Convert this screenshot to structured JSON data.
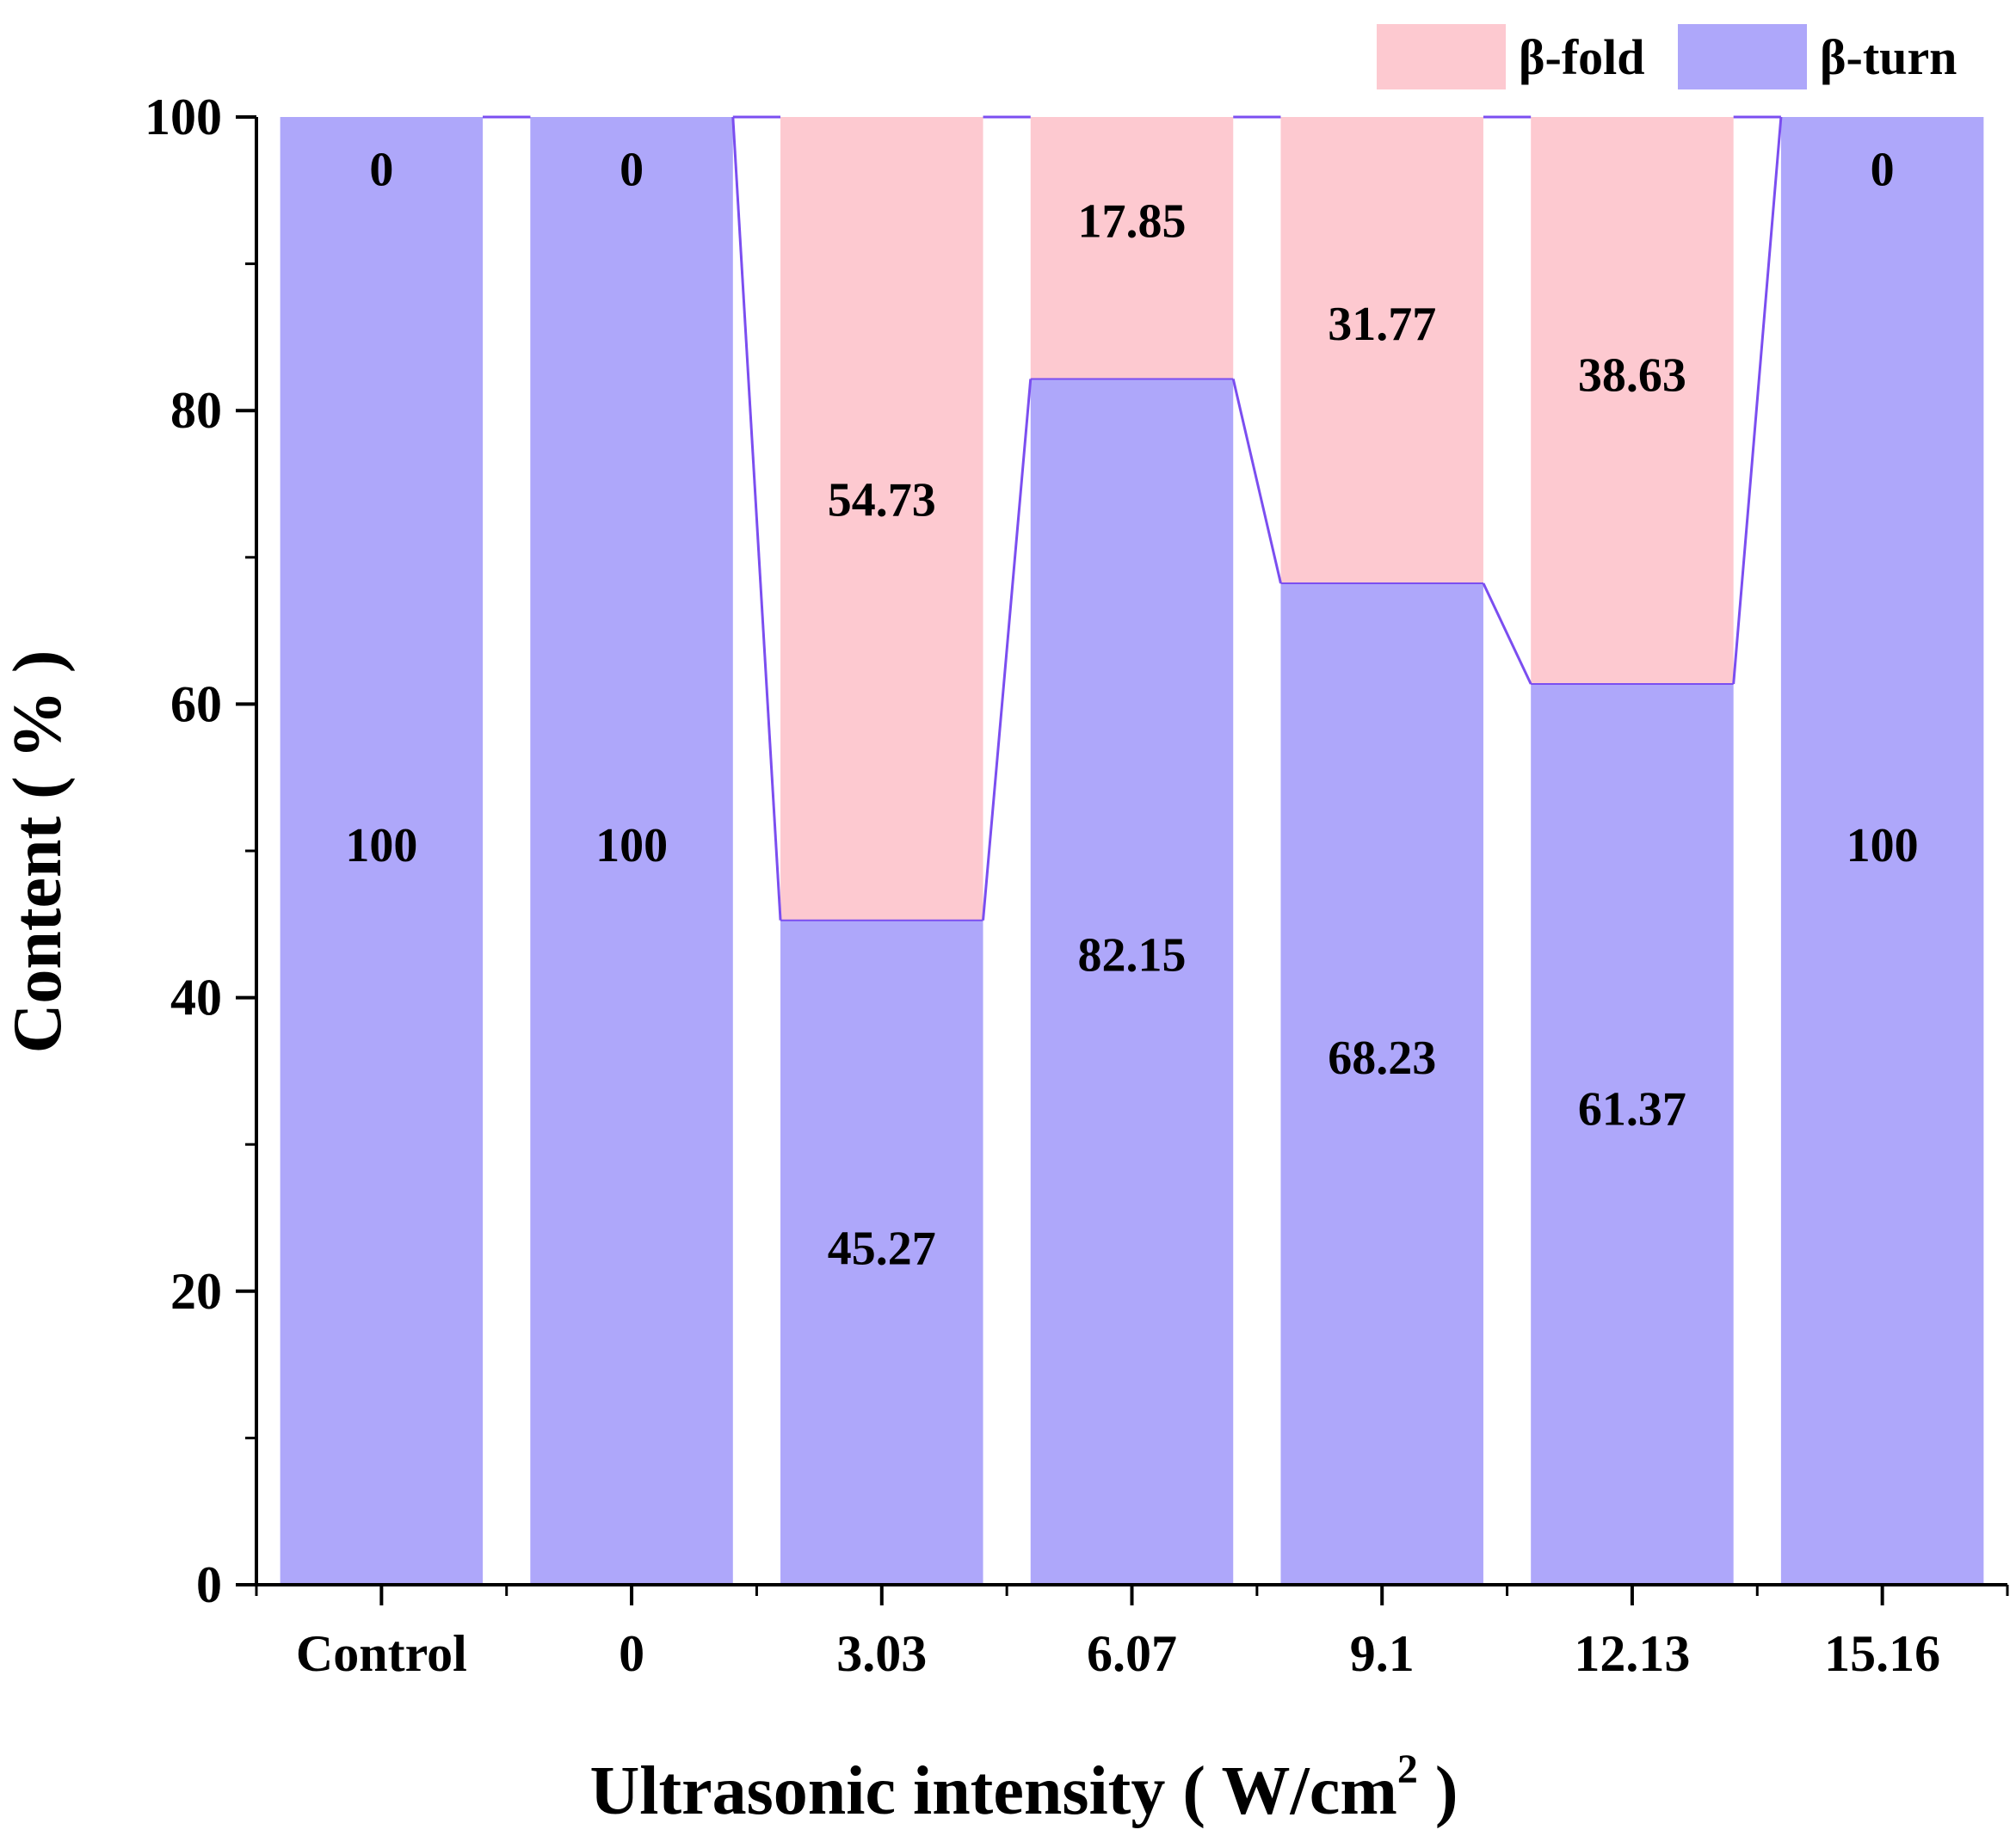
{
  "chart_data": {
    "type": "bar",
    "stacked": true,
    "title": "",
    "xlabel": "Ultrasonic intensity ( W/cm",
    "xlabel_superscript": "2",
    "xlabel_close": " )",
    "ylabel": "Content ( % )",
    "ylim": [
      0,
      100
    ],
    "y_ticks": [
      "0",
      "20",
      "40",
      "60",
      "80",
      "100"
    ],
    "categories": [
      "Control",
      "0",
      "3.03",
      "6.07",
      "9.1",
      "12.13",
      "15.16"
    ],
    "series": [
      {
        "name": "β-turn",
        "color": "#aea7fa",
        "values": [
          100,
          100,
          45.27,
          82.15,
          68.23,
          61.37,
          100
        ],
        "labels": [
          "100",
          "100",
          "45.27",
          "82.15",
          "68.23",
          "61.37",
          "100"
        ]
      },
      {
        "name": "β-fold",
        "color": "#fdc9d0",
        "values": [
          0,
          0,
          54.73,
          17.85,
          31.77,
          38.63,
          0
        ],
        "labels": [
          "0",
          "0",
          "54.73",
          "17.85",
          "31.77",
          "38.63",
          "0"
        ]
      }
    ],
    "connector_color": "#7b4ef0",
    "legend_position": "top-right",
    "legend_order": [
      "β-fold",
      "β-turn"
    ]
  }
}
